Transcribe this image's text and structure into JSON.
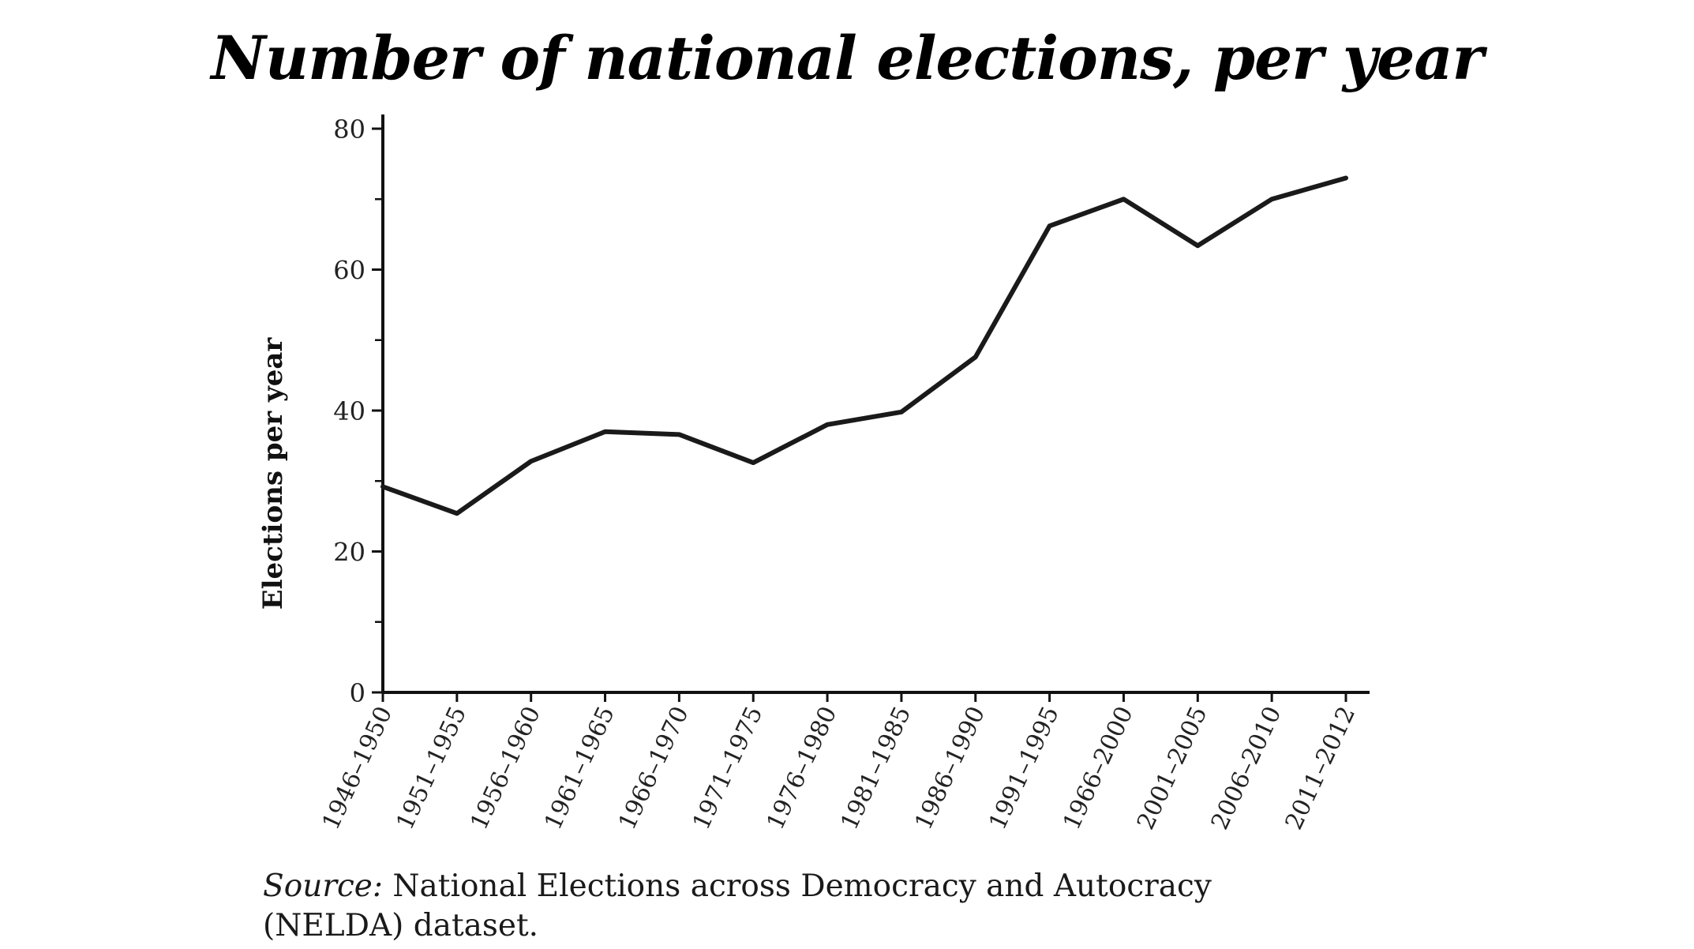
{
  "chart_data": {
    "type": "line",
    "title": "Number of national elections, per year",
    "ylabel": "Elections per year",
    "xlabel": "",
    "categories": [
      "1946–1950",
      "1951–1955",
      "1956–1960",
      "1961–1965",
      "1966–1970",
      "1971–1975",
      "1976–1980",
      "1981–1985",
      "1986–1990",
      "1991–1995",
      "1966–2000",
      "2001–2005",
      "2006–2010",
      "2011–2012"
    ],
    "values": [
      29.2,
      25.4,
      32.8,
      37.0,
      36.6,
      32.6,
      38.0,
      39.8,
      47.6,
      66.2,
      70.0,
      63.4,
      70.0,
      73.0
    ],
    "ylim": [
      0,
      80
    ],
    "yticks": [
      0,
      20,
      40,
      60,
      80
    ],
    "yminor_step": 10,
    "grid": false,
    "legend": "none",
    "line_color": "#1a1a1a"
  },
  "source": {
    "label": "Source:",
    "text": " National Elections across Democracy and Autocracy (NELDA) dataset."
  }
}
